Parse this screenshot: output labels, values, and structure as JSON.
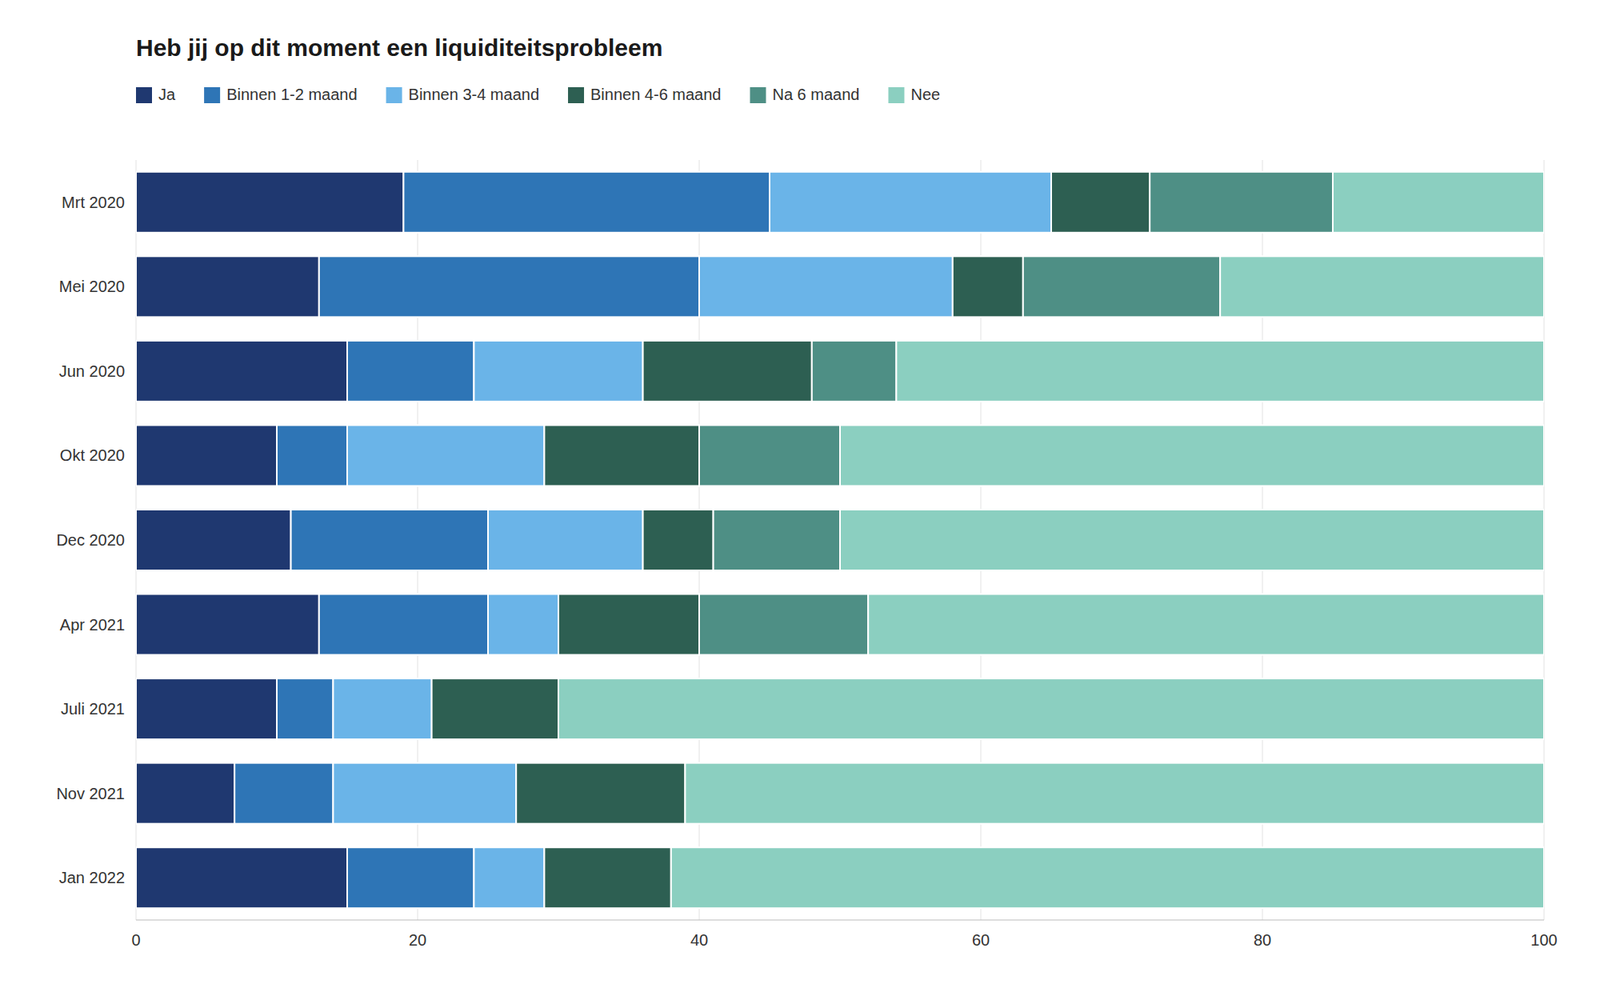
{
  "chart_data": {
    "type": "bar",
    "title": "Heb jij op dit moment een liquiditeitsprobleem",
    "orientation": "horizontal",
    "stacked": true,
    "categories": [
      "Mrt 2020",
      "Mei 2020",
      "Jun 2020",
      "Okt 2020",
      "Dec 2020",
      "Apr 2021",
      "Juli 2021",
      "Nov 2021",
      "Jan 2022"
    ],
    "series": [
      {
        "name": "Ja",
        "color": "#1f3870",
        "values": [
          19,
          13,
          15,
          10,
          11,
          13,
          10,
          7,
          15
        ]
      },
      {
        "name": "Binnen 1-2 maand",
        "color": "#2e75b6",
        "values": [
          26,
          27,
          9,
          5,
          14,
          12,
          4,
          7,
          9
        ]
      },
      {
        "name": "Binnen 3-4 maand",
        "color": "#6ab4e8",
        "values": [
          20,
          18,
          12,
          14,
          11,
          5,
          7,
          13,
          5
        ]
      },
      {
        "name": "Binnen 4-6 maand",
        "color": "#2d5f52",
        "values": [
          7,
          5,
          12,
          11,
          5,
          10,
          9,
          12,
          9
        ]
      },
      {
        "name": "Na 6 maand",
        "color": "#4e8f85",
        "values": [
          13,
          14,
          6,
          10,
          9,
          12,
          0,
          0,
          0
        ]
      },
      {
        "name": "Nee",
        "color": "#8bcfc0",
        "values": [
          15,
          23,
          46,
          50,
          50,
          48,
          70,
          61,
          62
        ]
      }
    ],
    "xlim": [
      0,
      100
    ],
    "xticks": [
      0,
      20,
      40,
      60,
      80,
      100
    ],
    "grid": true,
    "legend": "top"
  }
}
